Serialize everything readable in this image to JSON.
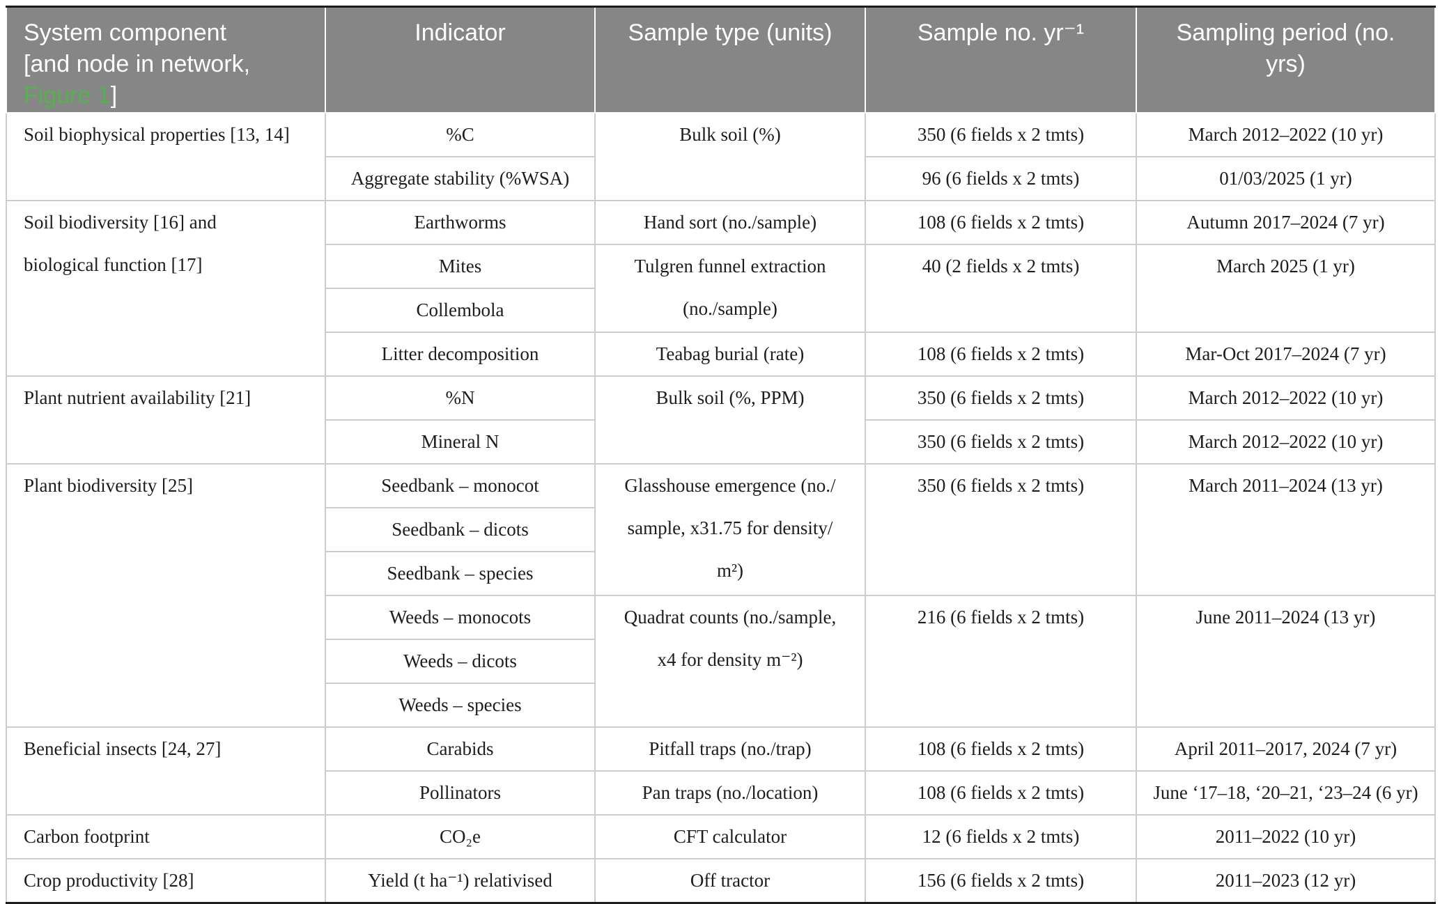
{
  "table": {
    "colors": {
      "header_bg": "#868686",
      "header_text": "#ffffff",
      "figure_link_green": "#55b14d",
      "grid_line": "#cdcdcd",
      "outer_border": "#1b1b1b",
      "body_text": "#1d1d1d"
    },
    "header": {
      "component_prefix": "System component\n[and node in network,\n",
      "component_link": "Figure 1",
      "component_suffix": "]",
      "indicator": "Indicator",
      "sample_type": "Sample type (units)",
      "sample_no": "Sample no. yr⁻¹",
      "sampling_period": "Sampling period (no.\nyrs)"
    },
    "groups": [
      {
        "component": "Soil biophysical properties [13, 14]",
        "rows": [
          {
            "indicator": "%C",
            "sample_type": "Bulk soil (%)",
            "sample_no": "350 (6 fields x 2 tmts)",
            "period": "March 2012–2022 (10 yr)"
          },
          {
            "indicator": "Aggregate stability (%WSA)",
            "sample_no": "96 (6 fields x 2 tmts)",
            "period": "01/03/2025 (1 yr)"
          }
        ]
      },
      {
        "component": "Soil biodiversity [16] and\nbiological function [17]",
        "rows": [
          {
            "indicator": "Earthworms",
            "sample_type": "Hand sort (no./sample)",
            "sample_no": "108 (6 fields x 2 tmts)",
            "period": "Autumn 2017–2024 (7 yr)"
          },
          {
            "indicator": "Mites",
            "sample_type": "Tulgren funnel extraction\n(no./sample)",
            "sample_no": "40 (2 fields x 2 tmts)",
            "period": "March 2025 (1 yr)"
          },
          {
            "indicator": "Collembola"
          },
          {
            "indicator": "Litter decomposition",
            "sample_type": "Teabag burial (rate)",
            "sample_no": "108 (6 fields x 2 tmts)",
            "period": "Mar-Oct 2017–2024 (7 yr)"
          }
        ]
      },
      {
        "component": "Plant nutrient availability [21]",
        "rows": [
          {
            "indicator": "%N",
            "sample_type": "Bulk soil (%, PPM)",
            "sample_no": "350 (6 fields x 2 tmts)",
            "period": "March 2012–2022 (10 yr)"
          },
          {
            "indicator": "Mineral N",
            "sample_no": "350 (6 fields x 2 tmts)",
            "period": "March 2012–2022 (10 yr)"
          }
        ]
      },
      {
        "component": "Plant biodiversity [25]",
        "rows": [
          {
            "indicator": "Seedbank – monocot",
            "sample_type": "Glasshouse emergence (no./\nsample, x31.75 for density/\nm²)",
            "sample_no": "350 (6 fields x 2 tmts)",
            "period": "March 2011–2024 (13 yr)"
          },
          {
            "indicator": "Seedbank – dicots"
          },
          {
            "indicator": "Seedbank – species"
          },
          {
            "indicator": "Weeds – monocots",
            "sample_type": "Quadrat counts (no./sample,\nx4 for density m⁻²)",
            "sample_no": "216 (6 fields x 2 tmts)",
            "period": "June 2011–2024 (13 yr)"
          },
          {
            "indicator": "Weeds – dicots"
          },
          {
            "indicator": "Weeds – species"
          }
        ]
      },
      {
        "component": "Beneficial insects [24, 27]",
        "rows": [
          {
            "indicator": "Carabids",
            "sample_type": "Pitfall traps (no./trap)",
            "sample_no": "108 (6 fields x 2 tmts)",
            "period": "April 2011–2017, 2024 (7 yr)"
          },
          {
            "indicator": "Pollinators",
            "sample_type": "Pan traps (no./location)",
            "sample_no": "108 (6 fields x 2 tmts)",
            "period": "June ‘17–18, ‘20–21, ‘23–24 (6 yr)"
          }
        ]
      },
      {
        "component": "Carbon footprint",
        "rows": [
          {
            "indicator": "CO₂e",
            "sample_type": "CFT calculator",
            "sample_no": "12 (6 fields x 2 tmts)",
            "period": "2011–2022 (10 yr)"
          }
        ]
      },
      {
        "component": "Crop productivity [28]",
        "rows": [
          {
            "indicator": "Yield (t ha⁻¹) relativised",
            "sample_type": "Off tractor",
            "sample_no": "156 (6 fields x 2 tmts)",
            "period": "2011–2023 (12 yr)"
          }
        ]
      }
    ]
  }
}
